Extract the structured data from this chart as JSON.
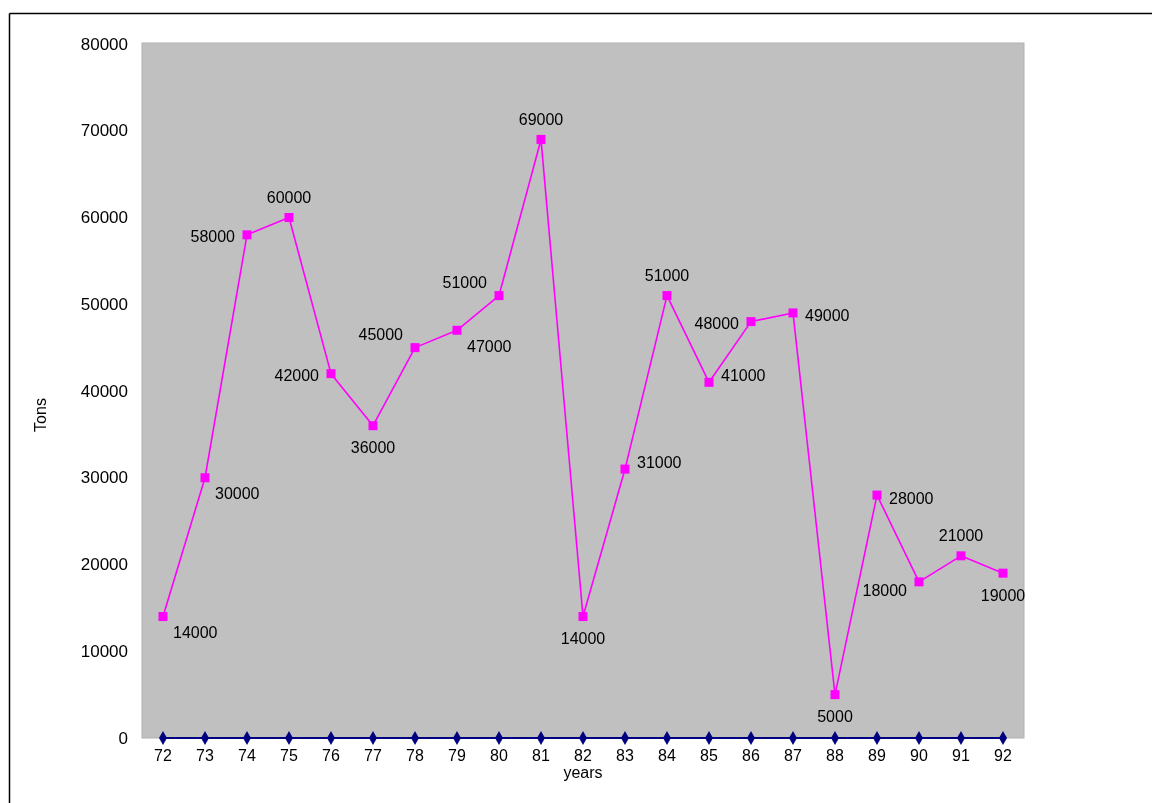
{
  "chart_data": {
    "type": "line",
    "xlabel": "years",
    "ylabel": "Tons",
    "categories": [
      "72",
      "73",
      "74",
      "75",
      "76",
      "77",
      "78",
      "79",
      "80",
      "81",
      "82",
      "83",
      "84",
      "85",
      "86",
      "87",
      "88",
      "89",
      "90",
      "91",
      "92"
    ],
    "ylim": [
      0,
      80000
    ],
    "yticks": [
      0,
      10000,
      20000,
      30000,
      40000,
      50000,
      60000,
      70000,
      80000
    ],
    "series": [
      {
        "color": "#ff00ff",
        "marker": "square",
        "values": [
          14000,
          30000,
          58000,
          60000,
          42000,
          36000,
          45000,
          47000,
          51000,
          69000,
          14000,
          31000,
          51000,
          41000,
          48000,
          49000,
          5000,
          28000,
          18000,
          21000,
          19000
        ],
        "value_labels": [
          "14000",
          "30000",
          "58000",
          "60000",
          "42000",
          "36000",
          "45000",
          "47000",
          "51000",
          "69000",
          "14000",
          "31000",
          "51000",
          "41000",
          "48000",
          "49000",
          "5000",
          "28000",
          "18000",
          "21000",
          "19000"
        ]
      },
      {
        "color": "#000080",
        "marker": "diamond",
        "values": [
          0,
          0,
          0,
          0,
          0,
          0,
          0,
          0,
          0,
          0,
          0,
          0,
          0,
          0,
          0,
          0,
          0,
          0,
          0,
          0,
          0
        ]
      }
    ]
  }
}
